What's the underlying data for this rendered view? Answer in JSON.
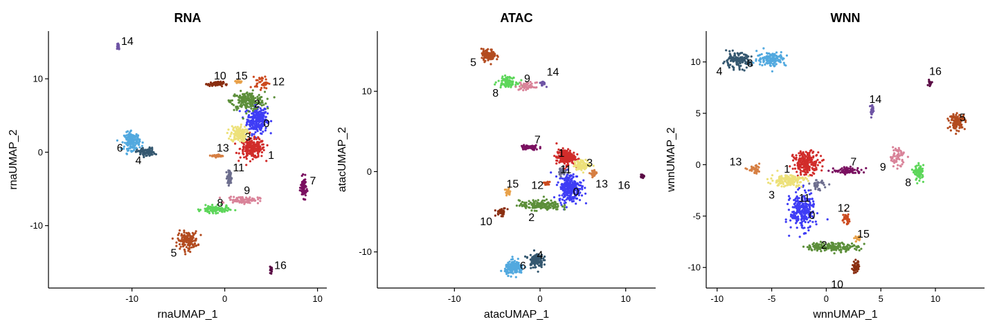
{
  "chart_data": [
    {
      "type": "scatter",
      "title": "RNA",
      "xlabel": "rnaUMAP_1",
      "ylabel": "rnaUMAP_2",
      "xlim": [
        -19,
        11
      ],
      "ylim": [
        -18.5,
        16.5
      ],
      "xticks": [
        -10,
        0,
        10
      ],
      "yticks": [
        -10,
        0,
        10
      ],
      "xtick_labels": [
        "-10",
        "0",
        "10"
      ],
      "ytick_labels": [
        "-10",
        "0",
        "10"
      ],
      "grid": false,
      "legend": "none",
      "clusters": [
        {
          "name": "0",
          "color": "#3F3DF5",
          "x": 3.5,
          "y": 4.5,
          "sx": 0.9,
          "sy": 1.6,
          "n": 260,
          "label_x": 4.5,
          "label_y": 3.8
        },
        {
          "name": "1",
          "color": "#D12C2A",
          "x": 3.0,
          "y": 0.5,
          "sx": 1.1,
          "sy": 1.1,
          "n": 220,
          "label_x": 5.0,
          "label_y": -0.5
        },
        {
          "name": "2",
          "color": "#5C8F3A",
          "x": 2.5,
          "y": 7.0,
          "sx": 1.5,
          "sy": 1.0,
          "n": 200,
          "label_x": 3.5,
          "label_y": 6.5
        },
        {
          "name": "3",
          "color": "#EDE17A",
          "x": 1.5,
          "y": 2.5,
          "sx": 0.7,
          "sy": 0.9,
          "n": 130,
          "label_x": 2.5,
          "label_y": 2.0
        },
        {
          "name": "4",
          "color": "#355870",
          "x": -8.5,
          "y": 0.0,
          "sx": 0.8,
          "sy": 0.5,
          "n": 90,
          "label_x": -9.3,
          "label_y": -1.2
        },
        {
          "name": "5",
          "color": "#B34C20",
          "x": -4.0,
          "y": -12.0,
          "sx": 0.9,
          "sy": 1.0,
          "n": 150,
          "label_x": -5.5,
          "label_y": -13.8
        },
        {
          "name": "6",
          "color": "#52A9DF",
          "x": -10.0,
          "y": 1.5,
          "sx": 0.7,
          "sy": 1.0,
          "n": 150,
          "label_x": -11.3,
          "label_y": 0.5
        },
        {
          "name": "7",
          "color": "#7A1060",
          "x": 8.5,
          "y": -4.8,
          "sx": 0.25,
          "sy": 1.1,
          "n": 80,
          "label_x": 9.5,
          "label_y": -4.0
        },
        {
          "name": "8",
          "color": "#5DD65A",
          "x": -1.0,
          "y": -7.8,
          "sx": 1.2,
          "sy": 0.4,
          "n": 110,
          "label_x": -0.5,
          "label_y": -7.0
        },
        {
          "name": "9",
          "color": "#D98399",
          "x": 2.0,
          "y": -6.5,
          "sx": 1.4,
          "sy": 0.4,
          "n": 90,
          "label_x": 2.4,
          "label_y": -5.3
        },
        {
          "name": "10",
          "color": "#8A2E10",
          "x": -1.0,
          "y": 9.3,
          "sx": 0.7,
          "sy": 0.25,
          "n": 80,
          "label_x": -0.5,
          "label_y": 10.3
        },
        {
          "name": "11",
          "color": "#6D6E8E",
          "x": 0.5,
          "y": -3.5,
          "sx": 0.2,
          "sy": 0.8,
          "n": 60,
          "label_x": 1.5,
          "label_y": -2.2
        },
        {
          "name": "12",
          "color": "#CC4A1F",
          "x": 4.0,
          "y": 9.5,
          "sx": 0.6,
          "sy": 0.7,
          "n": 40,
          "label_x": 5.8,
          "label_y": 9.5
        },
        {
          "name": "13",
          "color": "#D67F43",
          "x": -0.8,
          "y": -0.5,
          "sx": 0.5,
          "sy": 0.15,
          "n": 45,
          "label_x": -0.2,
          "label_y": 0.5
        },
        {
          "name": "14",
          "color": "#6F55A5",
          "x": -11.5,
          "y": 14.5,
          "sx": 0.15,
          "sy": 0.4,
          "n": 25,
          "label_x": -10.5,
          "label_y": 15.0
        },
        {
          "name": "15",
          "color": "#E8A14A",
          "x": 1.5,
          "y": 9.6,
          "sx": 0.3,
          "sy": 0.2,
          "n": 25,
          "label_x": 1.8,
          "label_y": 10.3
        },
        {
          "name": "16",
          "color": "#5A0C45",
          "x": 5.0,
          "y": -16.0,
          "sx": 0.1,
          "sy": 0.35,
          "n": 20,
          "label_x": 6.0,
          "label_y": -15.5
        }
      ]
    },
    {
      "type": "scatter",
      "title": "ATAC",
      "xlabel": "atacUMAP_1",
      "ylabel": "atacUMAP_2",
      "xlim": [
        -19,
        13.5
      ],
      "ylim": [
        -14.5,
        17.5
      ],
      "xticks": [
        -10,
        0,
        10
      ],
      "yticks": [
        -10,
        0,
        10
      ],
      "xtick_labels": [
        "-10",
        "0",
        "10"
      ],
      "ytick_labels": [
        "-10",
        "0",
        "10"
      ],
      "grid": false,
      "legend": "none",
      "clusters": [
        {
          "name": "0",
          "color": "#3F3DF5",
          "x": 3.5,
          "y": -2.0,
          "sx": 1.1,
          "sy": 1.5,
          "n": 260,
          "label_x": 4.2,
          "label_y": -2.6
        },
        {
          "name": "1",
          "color": "#D12C2A",
          "x": 3.0,
          "y": 1.8,
          "sx": 0.9,
          "sy": 0.8,
          "n": 200,
          "label_x": 2.5,
          "label_y": 2.2
        },
        {
          "name": "2",
          "color": "#5C8F3A",
          "x": 0.0,
          "y": -4.2,
          "sx": 2.0,
          "sy": 0.5,
          "n": 170,
          "label_x": -1.0,
          "label_y": -5.8
        },
        {
          "name": "3",
          "color": "#EDE17A",
          "x": 5.0,
          "y": 0.8,
          "sx": 0.8,
          "sy": 0.5,
          "n": 110,
          "label_x": 5.8,
          "label_y": 1.0
        },
        {
          "name": "4",
          "color": "#355870",
          "x": -0.5,
          "y": -11.0,
          "sx": 0.7,
          "sy": 0.8,
          "n": 110,
          "label_x": 0.0,
          "label_y": -10.5
        },
        {
          "name": "5",
          "color": "#B34C20",
          "x": -6.0,
          "y": 14.5,
          "sx": 0.7,
          "sy": 0.6,
          "n": 110,
          "label_x": -7.8,
          "label_y": 13.5
        },
        {
          "name": "6",
          "color": "#52A9DF",
          "x": -3.0,
          "y": -12.0,
          "sx": 0.9,
          "sy": 0.7,
          "n": 150,
          "label_x": -2.0,
          "label_y": -11.8
        },
        {
          "name": "7",
          "color": "#7A1060",
          "x": -1.2,
          "y": 3.0,
          "sx": 0.9,
          "sy": 0.25,
          "n": 80,
          "label_x": -0.3,
          "label_y": 3.9
        },
        {
          "name": "8",
          "color": "#5DD65A",
          "x": -3.8,
          "y": 11.2,
          "sx": 0.9,
          "sy": 0.5,
          "n": 90,
          "label_x": -5.2,
          "label_y": 9.7
        },
        {
          "name": "9",
          "color": "#D98399",
          "x": -1.5,
          "y": 10.6,
          "sx": 0.8,
          "sy": 0.4,
          "n": 60,
          "label_x": -1.5,
          "label_y": 11.5
        },
        {
          "name": "10",
          "color": "#8A2E10",
          "x": -4.5,
          "y": -5.0,
          "sx": 0.5,
          "sy": 0.4,
          "n": 40,
          "label_x": -6.3,
          "label_y": -6.3
        },
        {
          "name": "11",
          "color": "#6D6E8E",
          "x": 2.5,
          "y": 0.0,
          "sx": 0.5,
          "sy": 0.4,
          "n": 30,
          "label_x": 3.0,
          "label_y": 0.2
        },
        {
          "name": "12",
          "color": "#CC4A1F",
          "x": 0.8,
          "y": -1.5,
          "sx": 0.3,
          "sy": 0.25,
          "n": 20,
          "label_x": -0.3,
          "label_y": -1.8
        },
        {
          "name": "13",
          "color": "#D67F43",
          "x": 6.2,
          "y": -0.3,
          "sx": 0.3,
          "sy": 0.4,
          "n": 30,
          "label_x": 7.2,
          "label_y": -1.6
        },
        {
          "name": "14",
          "color": "#6F55A5",
          "x": 0.3,
          "y": 11.0,
          "sx": 0.3,
          "sy": 0.25,
          "n": 20,
          "label_x": 1.5,
          "label_y": 12.3
        },
        {
          "name": "15",
          "color": "#E8A14A",
          "x": -3.8,
          "y": -2.6,
          "sx": 0.3,
          "sy": 0.4,
          "n": 20,
          "label_x": -3.2,
          "label_y": -1.6
        },
        {
          "name": "16",
          "color": "#5A0C45",
          "x": 12.0,
          "y": -0.6,
          "sx": 0.2,
          "sy": 0.2,
          "n": 15,
          "label_x": 9.8,
          "label_y": -1.8
        }
      ]
    },
    {
      "type": "scatter",
      "title": "WNN",
      "xlabel": "wnnUMAP_1",
      "ylabel": "wnnUMAP_2",
      "xlim": [
        -11,
        14.5
      ],
      "ylim": [
        -12,
        13
      ],
      "xticks": [
        -10,
        -5,
        0,
        5,
        10
      ],
      "yticks": [
        -10,
        -5,
        0,
        5,
        10
      ],
      "xtick_labels": [
        "-10",
        "-5",
        "0",
        "5",
        "10"
      ],
      "ytick_labels": [
        "-10",
        "-5",
        "0",
        "5",
        "10"
      ],
      "grid": false,
      "legend": "none",
      "clusters": [
        {
          "name": "0",
          "color": "#3F3DF5",
          "x": -2.2,
          "y": -4.5,
          "sx": 0.9,
          "sy": 1.5,
          "n": 260,
          "label_x": -1.3,
          "label_y": -5.0
        },
        {
          "name": "1",
          "color": "#D12C2A",
          "x": -1.8,
          "y": 0.2,
          "sx": 1.0,
          "sy": 0.9,
          "n": 210,
          "label_x": -3.6,
          "label_y": -0.5
        },
        {
          "name": "2",
          "color": "#5C8F3A",
          "x": 0.5,
          "y": -8.0,
          "sx": 2.0,
          "sy": 0.35,
          "n": 170,
          "label_x": -0.2,
          "label_y": -7.9
        },
        {
          "name": "3",
          "color": "#EDE17A",
          "x": -3.5,
          "y": -1.5,
          "sx": 1.3,
          "sy": 0.5,
          "n": 150,
          "label_x": -5.0,
          "label_y": -3.0
        },
        {
          "name": "4",
          "color": "#355870",
          "x": -8.2,
          "y": 10.1,
          "sx": 1.1,
          "sy": 0.6,
          "n": 130,
          "label_x": -9.8,
          "label_y": 9.0
        },
        {
          "name": "5",
          "color": "#B34C20",
          "x": 12.0,
          "y": 4.2,
          "sx": 0.6,
          "sy": 0.6,
          "n": 110,
          "label_x": 12.5,
          "label_y": 4.5
        },
        {
          "name": "6",
          "color": "#52A9DF",
          "x": -5.0,
          "y": 10.3,
          "sx": 1.1,
          "sy": 0.6,
          "n": 130,
          "label_x": -7.0,
          "label_y": 9.8
        },
        {
          "name": "7",
          "color": "#7A1060",
          "x": 2.0,
          "y": -0.6,
          "sx": 1.1,
          "sy": 0.25,
          "n": 80,
          "label_x": 2.5,
          "label_y": 0.2
        },
        {
          "name": "8",
          "color": "#5DD65A",
          "x": 8.5,
          "y": -0.8,
          "sx": 0.35,
          "sy": 0.6,
          "n": 80,
          "label_x": 7.5,
          "label_y": -1.8
        },
        {
          "name": "9",
          "color": "#D98399",
          "x": 6.5,
          "y": 0.8,
          "sx": 0.6,
          "sy": 0.8,
          "n": 60,
          "label_x": 5.2,
          "label_y": -0.3
        },
        {
          "name": "10",
          "color": "#8A2E10",
          "x": 2.7,
          "y": -10.0,
          "sx": 0.25,
          "sy": 0.5,
          "n": 45,
          "label_x": 1.0,
          "label_y": -11.7
        },
        {
          "name": "11",
          "color": "#6D6E8E",
          "x": -0.8,
          "y": -2.0,
          "sx": 0.5,
          "sy": 0.4,
          "n": 35,
          "label_x": -2.0,
          "label_y": -3.3
        },
        {
          "name": "12",
          "color": "#CC4A1F",
          "x": 1.8,
          "y": -5.3,
          "sx": 0.3,
          "sy": 0.5,
          "n": 30,
          "label_x": 1.6,
          "label_y": -4.3
        },
        {
          "name": "13",
          "color": "#D67F43",
          "x": -6.5,
          "y": -0.5,
          "sx": 0.5,
          "sy": 0.3,
          "n": 35,
          "label_x": -8.3,
          "label_y": 0.2
        },
        {
          "name": "14",
          "color": "#6F55A5",
          "x": 4.2,
          "y": 5.2,
          "sx": 0.15,
          "sy": 0.5,
          "n": 25,
          "label_x": 4.5,
          "label_y": 6.3
        },
        {
          "name": "15",
          "color": "#E8A14A",
          "x": 2.9,
          "y": -7.2,
          "sx": 0.25,
          "sy": 0.3,
          "n": 20,
          "label_x": 3.4,
          "label_y": -6.8
        },
        {
          "name": "16",
          "color": "#5A0C45",
          "x": 9.5,
          "y": 8.0,
          "sx": 0.15,
          "sy": 0.25,
          "n": 15,
          "label_x": 10.0,
          "label_y": 9.0
        }
      ]
    }
  ]
}
